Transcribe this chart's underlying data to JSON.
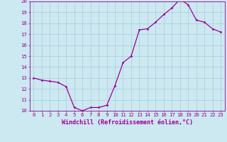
{
  "x": [
    0,
    1,
    2,
    3,
    4,
    5,
    6,
    7,
    8,
    9,
    10,
    11,
    12,
    13,
    14,
    15,
    16,
    17,
    18,
    19,
    20,
    21,
    22,
    23
  ],
  "y": [
    13,
    12.8,
    12.7,
    12.6,
    12.2,
    10.3,
    10.0,
    10.3,
    10.3,
    10.5,
    12.3,
    14.4,
    15.0,
    17.4,
    17.5,
    18.1,
    18.8,
    19.4,
    20.2,
    19.7,
    18.3,
    18.1,
    17.5,
    17.2
  ],
  "line_color": "#990099",
  "marker": "D",
  "marker_color": "#990099",
  "marker_size": 1.5,
  "xlabel": "Windchill (Refroidissement éolien,°C)",
  "ylim": [
    10,
    20
  ],
  "xlim": [
    -0.5,
    23.5
  ],
  "yticks": [
    10,
    11,
    12,
    13,
    14,
    15,
    16,
    17,
    18,
    19,
    20
  ],
  "xticks": [
    0,
    1,
    2,
    3,
    4,
    5,
    6,
    7,
    8,
    9,
    10,
    11,
    12,
    13,
    14,
    15,
    16,
    17,
    18,
    19,
    20,
    21,
    22,
    23
  ],
  "bg_color": "#cce8f0",
  "grid_color": "#aaccdd",
  "text_color": "#990099",
  "label_fontsize": 6.0,
  "tick_fontsize": 5.2,
  "linewidth": 0.9
}
